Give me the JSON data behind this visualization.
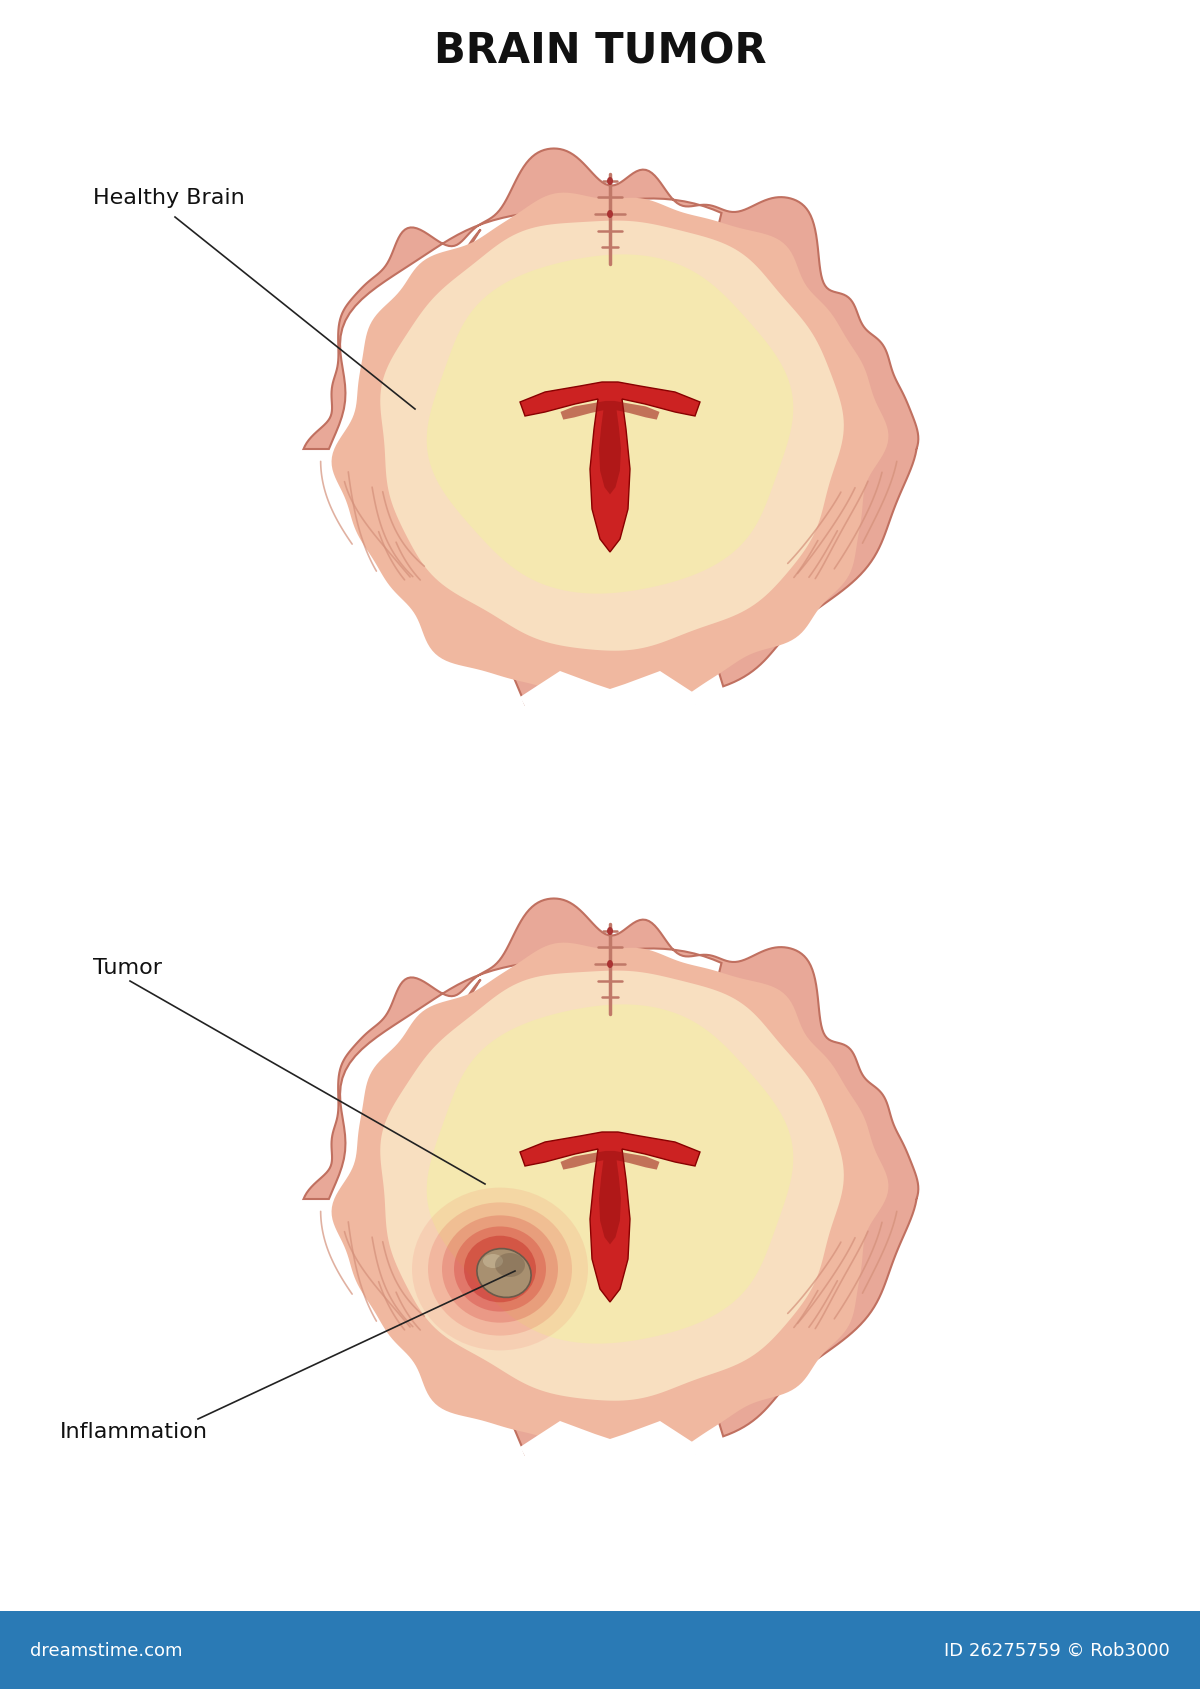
{
  "title": "BRAIN TUMOR",
  "title_fontsize": 30,
  "label_healthy": "Healthy Brain",
  "label_tumor": "Tumor",
  "label_inflammation": "Inflammation",
  "bg_color": "#ffffff",
  "brain_outer_color": "#e8a898",
  "brain_cortex_color": "#e8a898",
  "brain_mid_color": "#f0b8a0",
  "brain_inner_color": "#f8dfc0",
  "brain_lightest_color": "#fdf0d8",
  "brain_yellow_color": "#f5e8b0",
  "ventricle_color": "#cc2222",
  "ventricle_dark": "#991111",
  "sulcus_color": "#c07868",
  "tumor_color": "#a89070",
  "inflammation_color": "#dd2222",
  "footer_color": "#2a7ab5",
  "footer_text_left": "dreamstime.com",
  "footer_text_right": "ID 26275759 © Rob3000",
  "label_fontsize": 16
}
